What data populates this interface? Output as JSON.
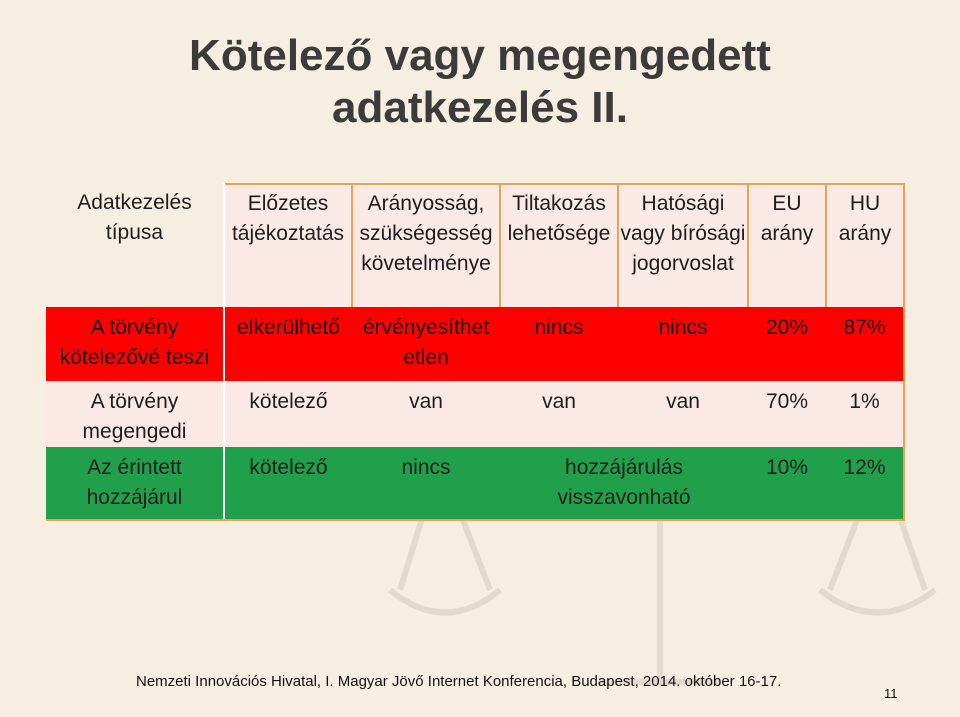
{
  "title": {
    "line1": "Kötelező vagy megengedett",
    "line2": "adatkezelés II."
  },
  "table": {
    "headers": [
      "Adatkezelés típusa",
      "Előzetes tájékoztatás",
      "Arányosság, szükségesség követelménye",
      "Tiltakozás lehetősége",
      "Hatósági vagy bírósági jogorvoslat",
      "EU arány",
      "HU arány"
    ],
    "rows": [
      {
        "type": "A törvény kötelezővé teszi",
        "cells": [
          "elkerülhető",
          "érvényesíthet etlen",
          "nincs",
          "nincs",
          "20%",
          "87%"
        ]
      },
      {
        "type": "A törvény megengedi",
        "cells": [
          "kötelező",
          "van",
          "van",
          "van",
          "70%",
          "1%"
        ]
      },
      {
        "type": "Az érintett hozzájárul",
        "cells": [
          "kötelező",
          "nincs",
          "hozzájárulás visszavonható",
          "",
          "10%",
          "12%"
        ]
      }
    ]
  },
  "colors": {
    "row_red": "#ff0000",
    "row_pink": "#fbe9e6",
    "row_green": "#20a04a",
    "grid": "#e6a35a"
  },
  "footer": "Nemzeti Innovációs Hivatal, I. Magyar Jövő Internet Konferencia, Budapest, 2014. október 16-17.",
  "page_number": "11"
}
